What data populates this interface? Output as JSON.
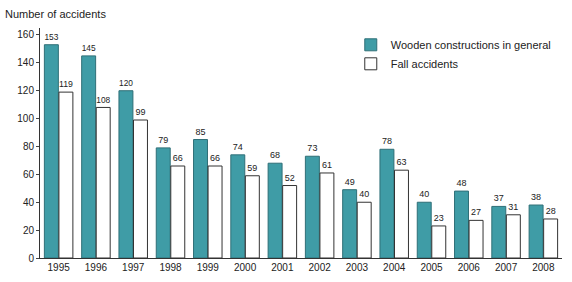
{
  "chart_data": {
    "type": "bar",
    "ylabel": "Number of accidents",
    "categories": [
      "1995",
      "1996",
      "1997",
      "1998",
      "1999",
      "2000",
      "2001",
      "2002",
      "2003",
      "2004",
      "2005",
      "2006",
      "2007",
      "2008"
    ],
    "series": [
      {
        "name": "Wooden constructions in general",
        "color": "#3f9ca6",
        "values": [
          153,
          145,
          120,
          79,
          85,
          74,
          68,
          73,
          49,
          78,
          40,
          48,
          37,
          38
        ]
      },
      {
        "name": "Fall accidents",
        "color": "#ffffff",
        "values": [
          119,
          108,
          99,
          66,
          66,
          59,
          52,
          61,
          40,
          63,
          23,
          27,
          31,
          28
        ]
      }
    ],
    "ylim": [
      0,
      165
    ],
    "yticks": [
      0,
      20,
      40,
      60,
      80,
      100,
      120,
      140,
      160
    ],
    "grid": false,
    "legend": "top-right",
    "data_labels": true
  }
}
